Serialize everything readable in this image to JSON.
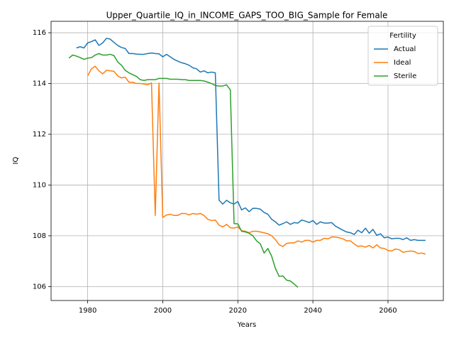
{
  "chart_data": {
    "type": "line",
    "title": "Upper_Quartile_IQ_in_INCOME_GAPS_TOO_BIG_Sample for Female",
    "x_label": "Years",
    "y_label": "IQ",
    "x": [
      1975,
      1976,
      1977,
      1978,
      1979,
      1980,
      1981,
      1982,
      1983,
      1984,
      1985,
      1986,
      1987,
      1988,
      1989,
      1990,
      1991,
      1992,
      1993,
      1994,
      1995,
      1996,
      1997,
      1998,
      1999,
      2000,
      2001,
      2002,
      2003,
      2004,
      2005,
      2006,
      2007,
      2008,
      2009,
      2010,
      2011,
      2012,
      2013,
      2014,
      2015,
      2016,
      2017,
      2018,
      2019,
      2020,
      2021,
      2022,
      2023,
      2024,
      2025,
      2026,
      2027,
      2028,
      2029,
      2030,
      2031,
      2032,
      2033,
      2034,
      2035,
      2036,
      2037,
      2038,
      2039,
      2040,
      2041,
      2042,
      2043,
      2044,
      2045,
      2046,
      2047,
      2048,
      2049,
      2050,
      2051,
      2052,
      2053,
      2054,
      2055,
      2056,
      2057,
      2058,
      2059,
      2060,
      2061,
      2062,
      2063,
      2064,
      2065,
      2066,
      2067,
      2068,
      2069,
      2070
    ],
    "series": [
      {
        "name": "Actual",
        "color": "#1f77b4",
        "values": [
          null,
          null,
          115.4,
          115.45,
          115.4,
          115.6,
          115.65,
          115.72,
          115.5,
          115.6,
          115.78,
          115.75,
          115.62,
          115.5,
          115.42,
          115.38,
          115.18,
          115.18,
          115.16,
          115.15,
          115.15,
          115.18,
          115.2,
          115.18,
          115.17,
          115.05,
          115.15,
          115.05,
          114.95,
          114.88,
          114.82,
          114.78,
          114.72,
          114.62,
          114.58,
          114.45,
          114.5,
          114.42,
          114.45,
          114.42,
          109.4,
          109.25,
          109.4,
          109.3,
          109.25,
          109.35,
          109.02,
          109.1,
          108.95,
          109.08,
          109.08,
          109.05,
          108.92,
          108.85,
          108.65,
          108.55,
          108.42,
          108.48,
          108.55,
          108.45,
          108.52,
          108.5,
          108.62,
          108.58,
          108.52,
          108.6,
          108.45,
          108.55,
          108.5,
          108.5,
          108.52,
          108.38,
          108.3,
          108.22,
          108.15,
          108.12,
          108.05,
          108.22,
          108.12,
          108.3,
          108.1,
          108.25,
          108.02,
          108.08,
          107.92,
          107.95,
          107.88,
          107.9,
          107.9,
          107.85,
          107.92,
          107.82,
          107.85,
          107.82,
          107.82,
          107.82
        ]
      },
      {
        "name": "Ideal",
        "color": "#ff7f0e",
        "values": [
          null,
          null,
          null,
          null,
          null,
          114.3,
          114.58,
          114.68,
          114.5,
          114.38,
          114.52,
          114.5,
          114.48,
          114.3,
          114.22,
          114.25,
          114.05,
          114.05,
          114.0,
          114.0,
          113.98,
          113.95,
          114.02,
          108.8,
          114.02,
          108.72,
          108.82,
          108.85,
          108.8,
          108.8,
          108.88,
          108.88,
          108.82,
          108.88,
          108.85,
          108.88,
          108.8,
          108.65,
          108.6,
          108.62,
          108.42,
          108.35,
          108.45,
          108.32,
          108.3,
          108.35,
          108.2,
          108.18,
          108.12,
          108.18,
          108.18,
          108.15,
          108.12,
          108.08,
          108.0,
          107.85,
          107.65,
          107.58,
          107.7,
          107.72,
          107.72,
          107.8,
          107.75,
          107.82,
          107.82,
          107.75,
          107.82,
          107.82,
          107.9,
          107.88,
          107.95,
          107.95,
          107.92,
          107.88,
          107.8,
          107.8,
          107.68,
          107.58,
          107.6,
          107.55,
          107.62,
          107.52,
          107.65,
          107.52,
          107.5,
          107.42,
          107.4,
          107.48,
          107.45,
          107.35,
          107.38,
          107.4,
          107.38,
          107.3,
          107.32,
          107.28
        ]
      },
      {
        "name": "Sterile",
        "color": "#2ca02c",
        "values": [
          115.0,
          115.12,
          115.08,
          115.02,
          114.95,
          115.0,
          115.02,
          115.12,
          115.18,
          115.12,
          115.12,
          115.15,
          115.1,
          114.85,
          114.72,
          114.52,
          114.42,
          114.35,
          114.28,
          114.15,
          114.12,
          114.15,
          114.15,
          114.15,
          114.2,
          114.2,
          114.2,
          114.17,
          114.17,
          114.17,
          114.15,
          114.15,
          114.12,
          114.12,
          114.12,
          114.12,
          114.1,
          114.05,
          114.0,
          113.92,
          113.9,
          113.9,
          113.95,
          113.75,
          108.48,
          108.47,
          108.18,
          108.15,
          108.1,
          108.0,
          107.8,
          107.68,
          107.32,
          107.5,
          107.2,
          106.72,
          106.4,
          106.42,
          106.25,
          106.22,
          106.1,
          105.97,
          null,
          null,
          null,
          null,
          null,
          null,
          null,
          null,
          null,
          null,
          null,
          null,
          null,
          null,
          null,
          null,
          null,
          null,
          null,
          null,
          null,
          null,
          null,
          null,
          null,
          null,
          null,
          null,
          null,
          null,
          null,
          null,
          null,
          null
        ]
      }
    ],
    "xlim": [
      1970.25,
      2074.75
    ],
    "ylim": [
      105.45,
      116.45
    ],
    "xticks": [
      1980,
      2000,
      2020,
      2040,
      2060
    ],
    "yticks": [
      106,
      108,
      110,
      112,
      114,
      116
    ],
    "grid": true,
    "legend_title": "Fertility",
    "legend_position": "upper right"
  }
}
